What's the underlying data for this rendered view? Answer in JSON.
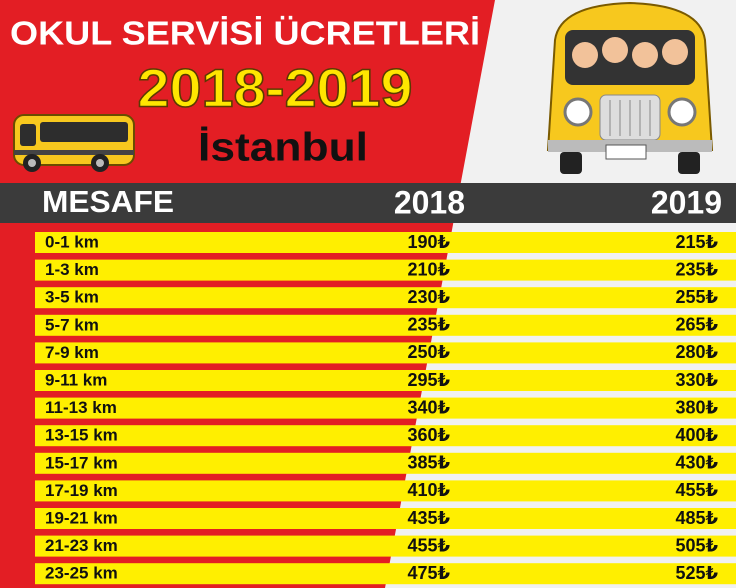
{
  "header": {
    "title": "OKUL SERVİSİ ÜCRETLERİ",
    "years": "2018-2019",
    "city": "İstanbul"
  },
  "table": {
    "columns": [
      "MESAFE",
      "2018",
      "2019"
    ],
    "rows": [
      [
        "0-1 km",
        "190₺",
        "215₺"
      ],
      [
        "1-3 km",
        "210₺",
        "235₺"
      ],
      [
        "3-5 km",
        "230₺",
        "255₺"
      ],
      [
        "5-7 km",
        "235₺",
        "265₺"
      ],
      [
        "7-9 km",
        "250₺",
        "280₺"
      ],
      [
        "9-11 km",
        "295₺",
        "330₺"
      ],
      [
        "11-13 km",
        "340₺",
        "380₺"
      ],
      [
        "13-15 km",
        "360₺",
        "400₺"
      ],
      [
        "15-17 km",
        "385₺",
        "430₺"
      ],
      [
        "17-19 km",
        "410₺",
        "455₺"
      ],
      [
        "19-21 km",
        "435₺",
        "485₺"
      ],
      [
        "21-23 km",
        "455₺",
        "505₺"
      ],
      [
        "23-25 km",
        "475₺",
        "525₺"
      ]
    ]
  }
}
